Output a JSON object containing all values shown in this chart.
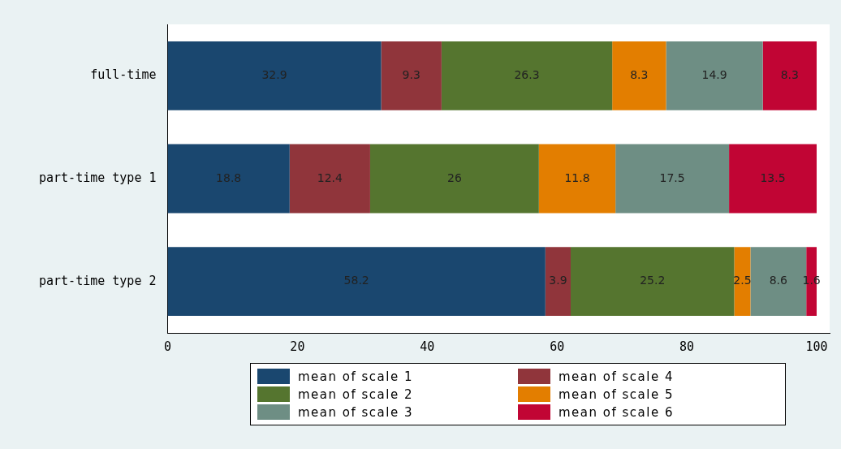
{
  "chart_data": {
    "type": "bar",
    "orientation": "horizontal",
    "stacked": true,
    "data_labels": true,
    "grid": false,
    "legend": "bottom",
    "categories": [
      "full-time",
      "part-time type 1",
      "part-time type 2"
    ],
    "xlim": [
      0,
      102
    ],
    "xticks": [
      0,
      20,
      40,
      60,
      80,
      100
    ],
    "series": [
      {
        "name": "mean of scale 1",
        "color": "#1a476f",
        "values": [
          32.9,
          18.8,
          58.2
        ]
      },
      {
        "name": "mean of scale 4",
        "color": "#90353b",
        "values": [
          9.3,
          12.4,
          3.9
        ]
      },
      {
        "name": "mean of scale 2",
        "color": "#55752f",
        "values": [
          26.3,
          26,
          25.2
        ]
      },
      {
        "name": "mean of scale 5",
        "color": "#e37e00",
        "values": [
          8.3,
          11.8,
          2.5
        ]
      },
      {
        "name": "mean of scale 3",
        "color": "#6e8e84",
        "values": [
          14.9,
          17.5,
          8.6
        ]
      },
      {
        "name": "mean of scale 6",
        "color": "#c10534",
        "values": [
          8.3,
          13.5,
          1.6
        ]
      }
    ]
  }
}
